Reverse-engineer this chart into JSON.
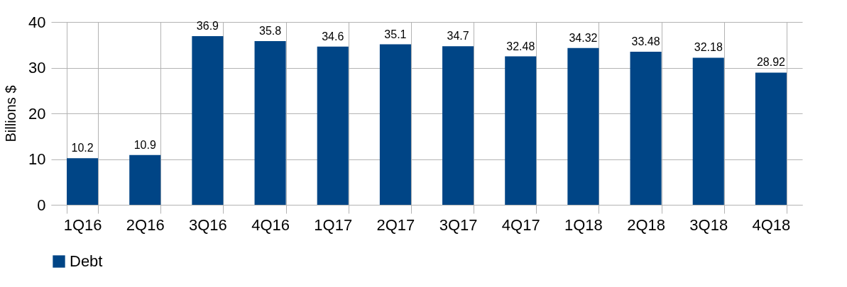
{
  "chart_data": {
    "type": "bar",
    "ylabel": "Billions   $",
    "categories": [
      "1Q16",
      "2Q16",
      "3Q16",
      "4Q16",
      "1Q17",
      "2Q17",
      "3Q17",
      "4Q17",
      "1Q18",
      "2Q18",
      "3Q18",
      "4Q18"
    ],
    "series": [
      {
        "name": "Debt",
        "color": "#004586",
        "values": [
          10.2,
          10.9,
          36.9,
          35.8,
          34.6,
          35.1,
          34.7,
          32.48,
          34.32,
          33.48,
          32.18,
          28.92
        ]
      }
    ],
    "ylim": [
      0,
      40
    ],
    "yticks": [
      0,
      10,
      20,
      30,
      40
    ],
    "grid": true,
    "legend": "bottom",
    "data_labels": true
  }
}
